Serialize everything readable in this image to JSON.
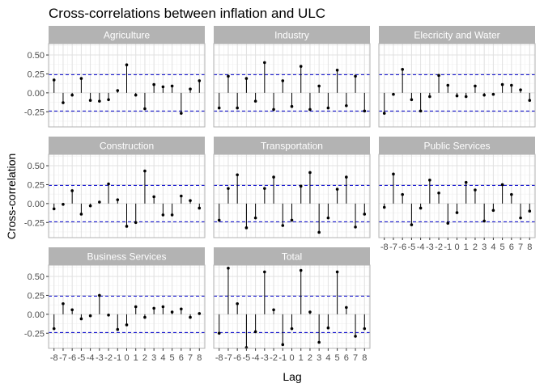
{
  "chart_data": {
    "type": "lollipop",
    "title": "Cross-correlations between inflation and ULC",
    "xlabel": "Lag",
    "ylabel": "Cross-correlation",
    "lags": [
      -8,
      -7,
      -6,
      -5,
      -4,
      -3,
      -2,
      -1,
      0,
      1,
      2,
      3,
      4,
      5,
      6,
      7,
      8
    ],
    "ylim": [
      -0.45,
      0.65
    ],
    "yticks": [
      0.5,
      0.25,
      0.0,
      -0.25
    ],
    "ytick_labels": [
      "0.50",
      "0.25",
      "0.00",
      "-0.25"
    ],
    "xtick_labels": [
      "-8",
      "-7",
      "-6",
      "-5",
      "-4",
      "-3",
      "-2",
      "-1",
      "0",
      "1",
      "2",
      "3",
      "4",
      "5",
      "6",
      "7",
      "8"
    ],
    "confidence_band": 0.24,
    "colors": {
      "strip": "#b3b3b3",
      "strip_text": "#ffffff",
      "panel_border": "#b3b3b3",
      "grid_major": "#e0e0e0",
      "grid_minor": "#f0f0f0",
      "band": "#0000cc",
      "stem": "#000000"
    },
    "panels": [
      {
        "name": "Agriculture",
        "values": [
          0.17,
          -0.13,
          -0.03,
          0.19,
          -0.1,
          -0.11,
          -0.09,
          0.03,
          0.37,
          -0.03,
          -0.21,
          0.11,
          0.08,
          0.09,
          -0.27,
          0.05,
          0.16
        ]
      },
      {
        "name": "Industry",
        "values": [
          -0.2,
          0.22,
          -0.2,
          0.19,
          -0.11,
          0.4,
          -0.22,
          0.16,
          -0.18,
          0.35,
          -0.22,
          0.09,
          -0.2,
          0.3,
          -0.17,
          0.22,
          -0.24
        ]
      },
      {
        "name": "Elecricity and Water",
        "values": [
          -0.27,
          -0.02,
          0.31,
          -0.09,
          -0.24,
          -0.05,
          0.23,
          0.1,
          -0.04,
          -0.05,
          0.09,
          -0.03,
          -0.02,
          0.11,
          0.1,
          0.04,
          -0.1
        ]
      },
      {
        "name": "Construction",
        "values": [
          -0.07,
          -0.01,
          0.17,
          -0.14,
          -0.03,
          0.02,
          0.26,
          0.05,
          -0.3,
          -0.25,
          0.43,
          0.09,
          -0.15,
          -0.15,
          0.1,
          0.04,
          -0.06
        ]
      },
      {
        "name": "Transportation",
        "values": [
          -0.22,
          0.2,
          0.38,
          -0.32,
          -0.19,
          0.2,
          0.35,
          -0.29,
          -0.22,
          0.23,
          0.41,
          -0.38,
          -0.19,
          0.19,
          0.35,
          -0.31,
          -0.14
        ]
      },
      {
        "name": "Public Services",
        "values": [
          -0.05,
          0.39,
          0.12,
          -0.28,
          -0.06,
          0.31,
          0.14,
          -0.26,
          -0.12,
          0.28,
          0.18,
          -0.23,
          -0.09,
          0.25,
          0.12,
          -0.19,
          -0.1
        ]
      },
      {
        "name": "Business Services",
        "values": [
          -0.19,
          0.14,
          0.06,
          -0.06,
          -0.02,
          0.25,
          -0.01,
          -0.2,
          -0.14,
          0.1,
          -0.04,
          0.08,
          0.1,
          0.03,
          0.07,
          -0.04,
          0.01
        ]
      },
      {
        "name": "Total",
        "values": [
          -0.25,
          0.61,
          0.14,
          -0.44,
          -0.23,
          0.56,
          0.06,
          -0.4,
          -0.19,
          0.58,
          0.03,
          -0.37,
          -0.18,
          0.56,
          0.09,
          -0.29,
          -0.19
        ]
      }
    ]
  }
}
